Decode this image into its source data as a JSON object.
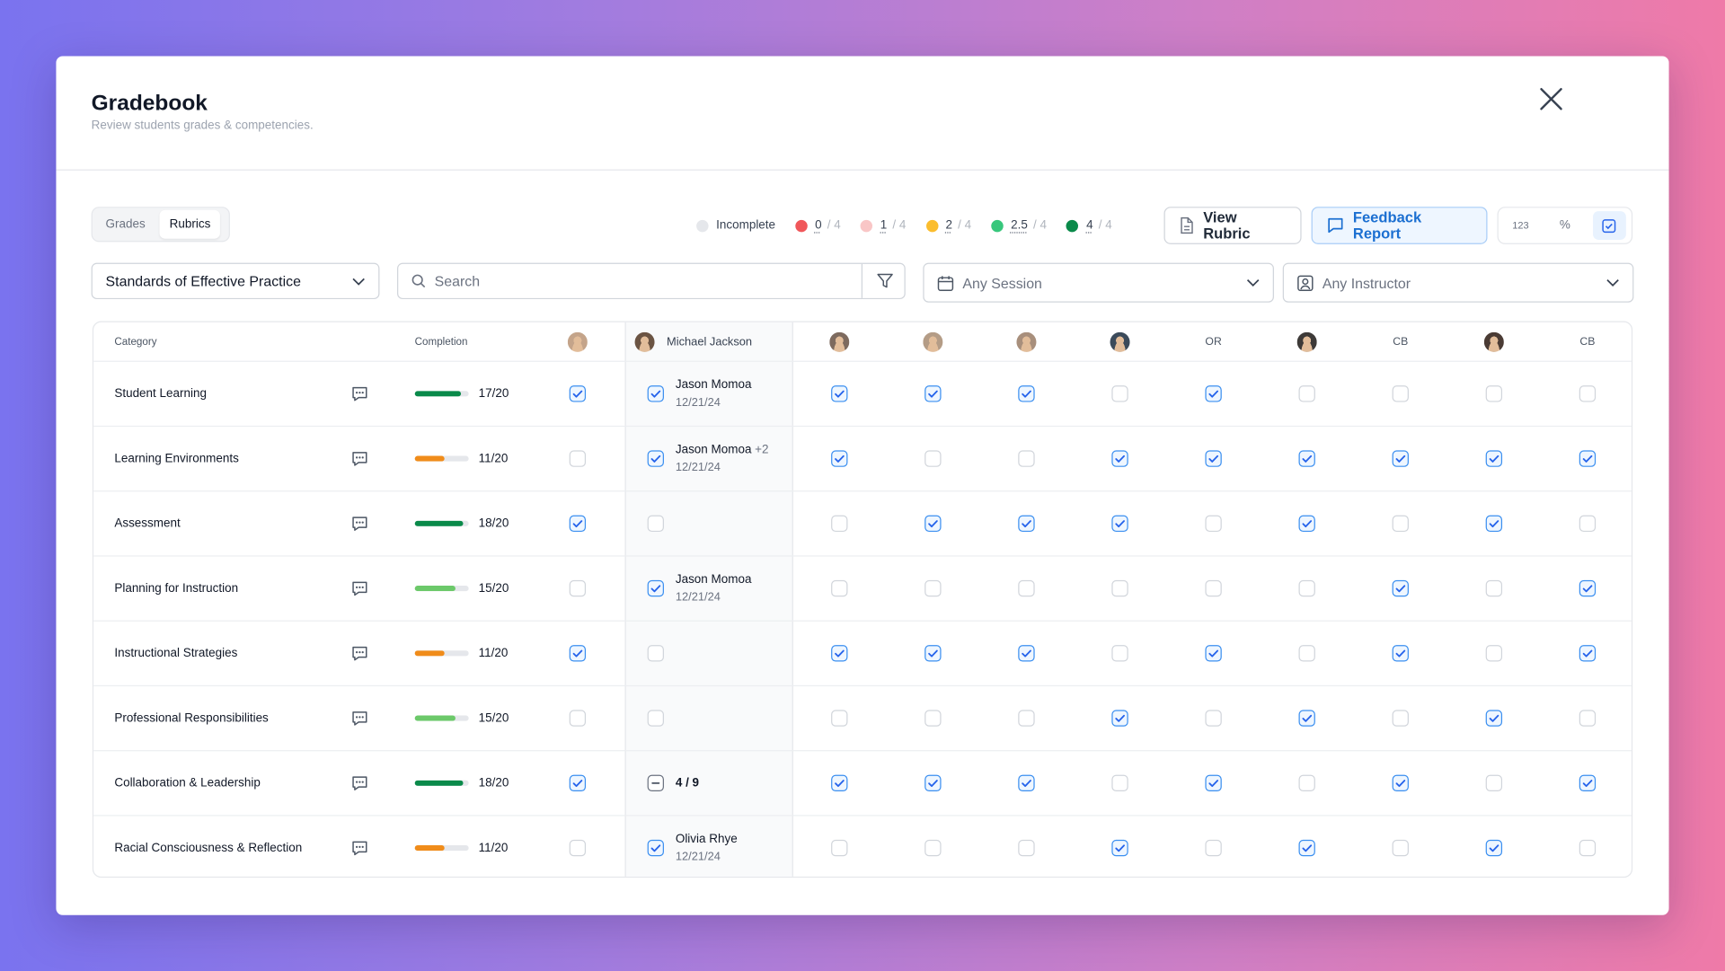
{
  "header": {
    "title": "Gradebook",
    "subtitle": "Review students grades & competencies."
  },
  "tabs": {
    "items": [
      "Grades",
      "Rubrics"
    ],
    "active": 1
  },
  "legend": [
    {
      "label": "Incomplete",
      "color": "#e5e7eb"
    },
    {
      "label": "0",
      "max": "/ 4",
      "color": "#f0575a"
    },
    {
      "label": "1",
      "max": "/ 4",
      "color": "#f9c6c6"
    },
    {
      "label": "2",
      "max": "/ 4",
      "color": "#fbbd2e"
    },
    {
      "label": "2.5",
      "max": "/ 4",
      "color": "#38c77c"
    },
    {
      "label": "4",
      "max": "/ 4",
      "color": "#0a8a4a"
    }
  ],
  "actions": [
    "View Rubric",
    "Feedback Report"
  ],
  "view_modes": [
    "123",
    "%"
  ],
  "filters": {
    "standard": "Standards of Effective Practice",
    "search": "Search",
    "session": "Any Session",
    "instructor": "Any Instructor"
  },
  "table": {
    "headers": {
      "category": "Category",
      "completion": "Completion"
    },
    "columns": [
      {
        "avatar": "#c4a48a"
      },
      {
        "avatar": "#6b5443",
        "name": "Michael Jackson"
      },
      {
        "avatar": "#7d6a5e"
      },
      {
        "avatar": "#b49c86"
      },
      {
        "avatar": "#a88f7c"
      },
      {
        "avatar": "#3b4a5a"
      },
      {
        "initials": "OR"
      },
      {
        "avatar": "#3d3a38"
      },
      {
        "initials": "CB"
      },
      {
        "avatar": "#4a3b34"
      },
      {
        "initials": "CB"
      }
    ],
    "rows": [
      {
        "category": "Student Learning",
        "score": 17,
        "max": 20,
        "score_label": "17/20",
        "color": "#0a8a4a",
        "checks": [
          true,
          true,
          true,
          true,
          true,
          false,
          true,
          false,
          false,
          false,
          false
        ],
        "reviewer": {
          "name": "Jason Momoa",
          "date": "12/21/24"
        }
      },
      {
        "category": "Learning Environments",
        "score": 11,
        "max": 20,
        "score_label": "11/20",
        "color": "#f08c1a",
        "checks": [
          false,
          true,
          true,
          false,
          false,
          true,
          true,
          true,
          true,
          true,
          true
        ],
        "reviewer": {
          "name": "Jason Momoa",
          "more": "+2",
          "date": "12/21/24"
        }
      },
      {
        "category": "Assessment",
        "score": 18,
        "max": 20,
        "score_label": "18/20",
        "color": "#0a8a4a",
        "checks": [
          true,
          false,
          false,
          true,
          true,
          true,
          false,
          true,
          false,
          true,
          false
        ]
      },
      {
        "category": "Planning for Instruction",
        "score": 15,
        "max": 20,
        "score_label": "15/20",
        "color": "#6cc96a",
        "checks": [
          false,
          true,
          false,
          false,
          false,
          false,
          false,
          false,
          true,
          false,
          true
        ],
        "reviewer": {
          "name": "Jason Momoa",
          "date": "12/21/24"
        }
      },
      {
        "category": "Instructional Strategies",
        "score": 11,
        "max": 20,
        "score_label": "11/20",
        "color": "#f08c1a",
        "checks": [
          true,
          false,
          true,
          true,
          true,
          false,
          true,
          false,
          true,
          false,
          true
        ]
      },
      {
        "category": "Professional Responsibilities",
        "score": 15,
        "max": 20,
        "score_label": "15/20",
        "color": "#6cc96a",
        "checks": [
          false,
          false,
          false,
          false,
          false,
          true,
          false,
          true,
          false,
          true,
          false
        ]
      },
      {
        "category": "Collaboration & Leadership",
        "score": 18,
        "max": 20,
        "score_label": "18/20",
        "color": "#0a8a4a",
        "checks": [
          true,
          "mixed",
          true,
          true,
          true,
          false,
          true,
          false,
          true,
          false,
          true
        ],
        "partial": "4 / 9"
      },
      {
        "category": "Racial Consciousness & Reflection",
        "score": 11,
        "max": 20,
        "score_label": "11/20",
        "color": "#f08c1a",
        "checks": [
          false,
          true,
          false,
          false,
          false,
          true,
          false,
          true,
          false,
          true,
          false
        ],
        "reviewer": {
          "name": "Olivia Rhye",
          "date": "12/21/24"
        }
      }
    ]
  }
}
